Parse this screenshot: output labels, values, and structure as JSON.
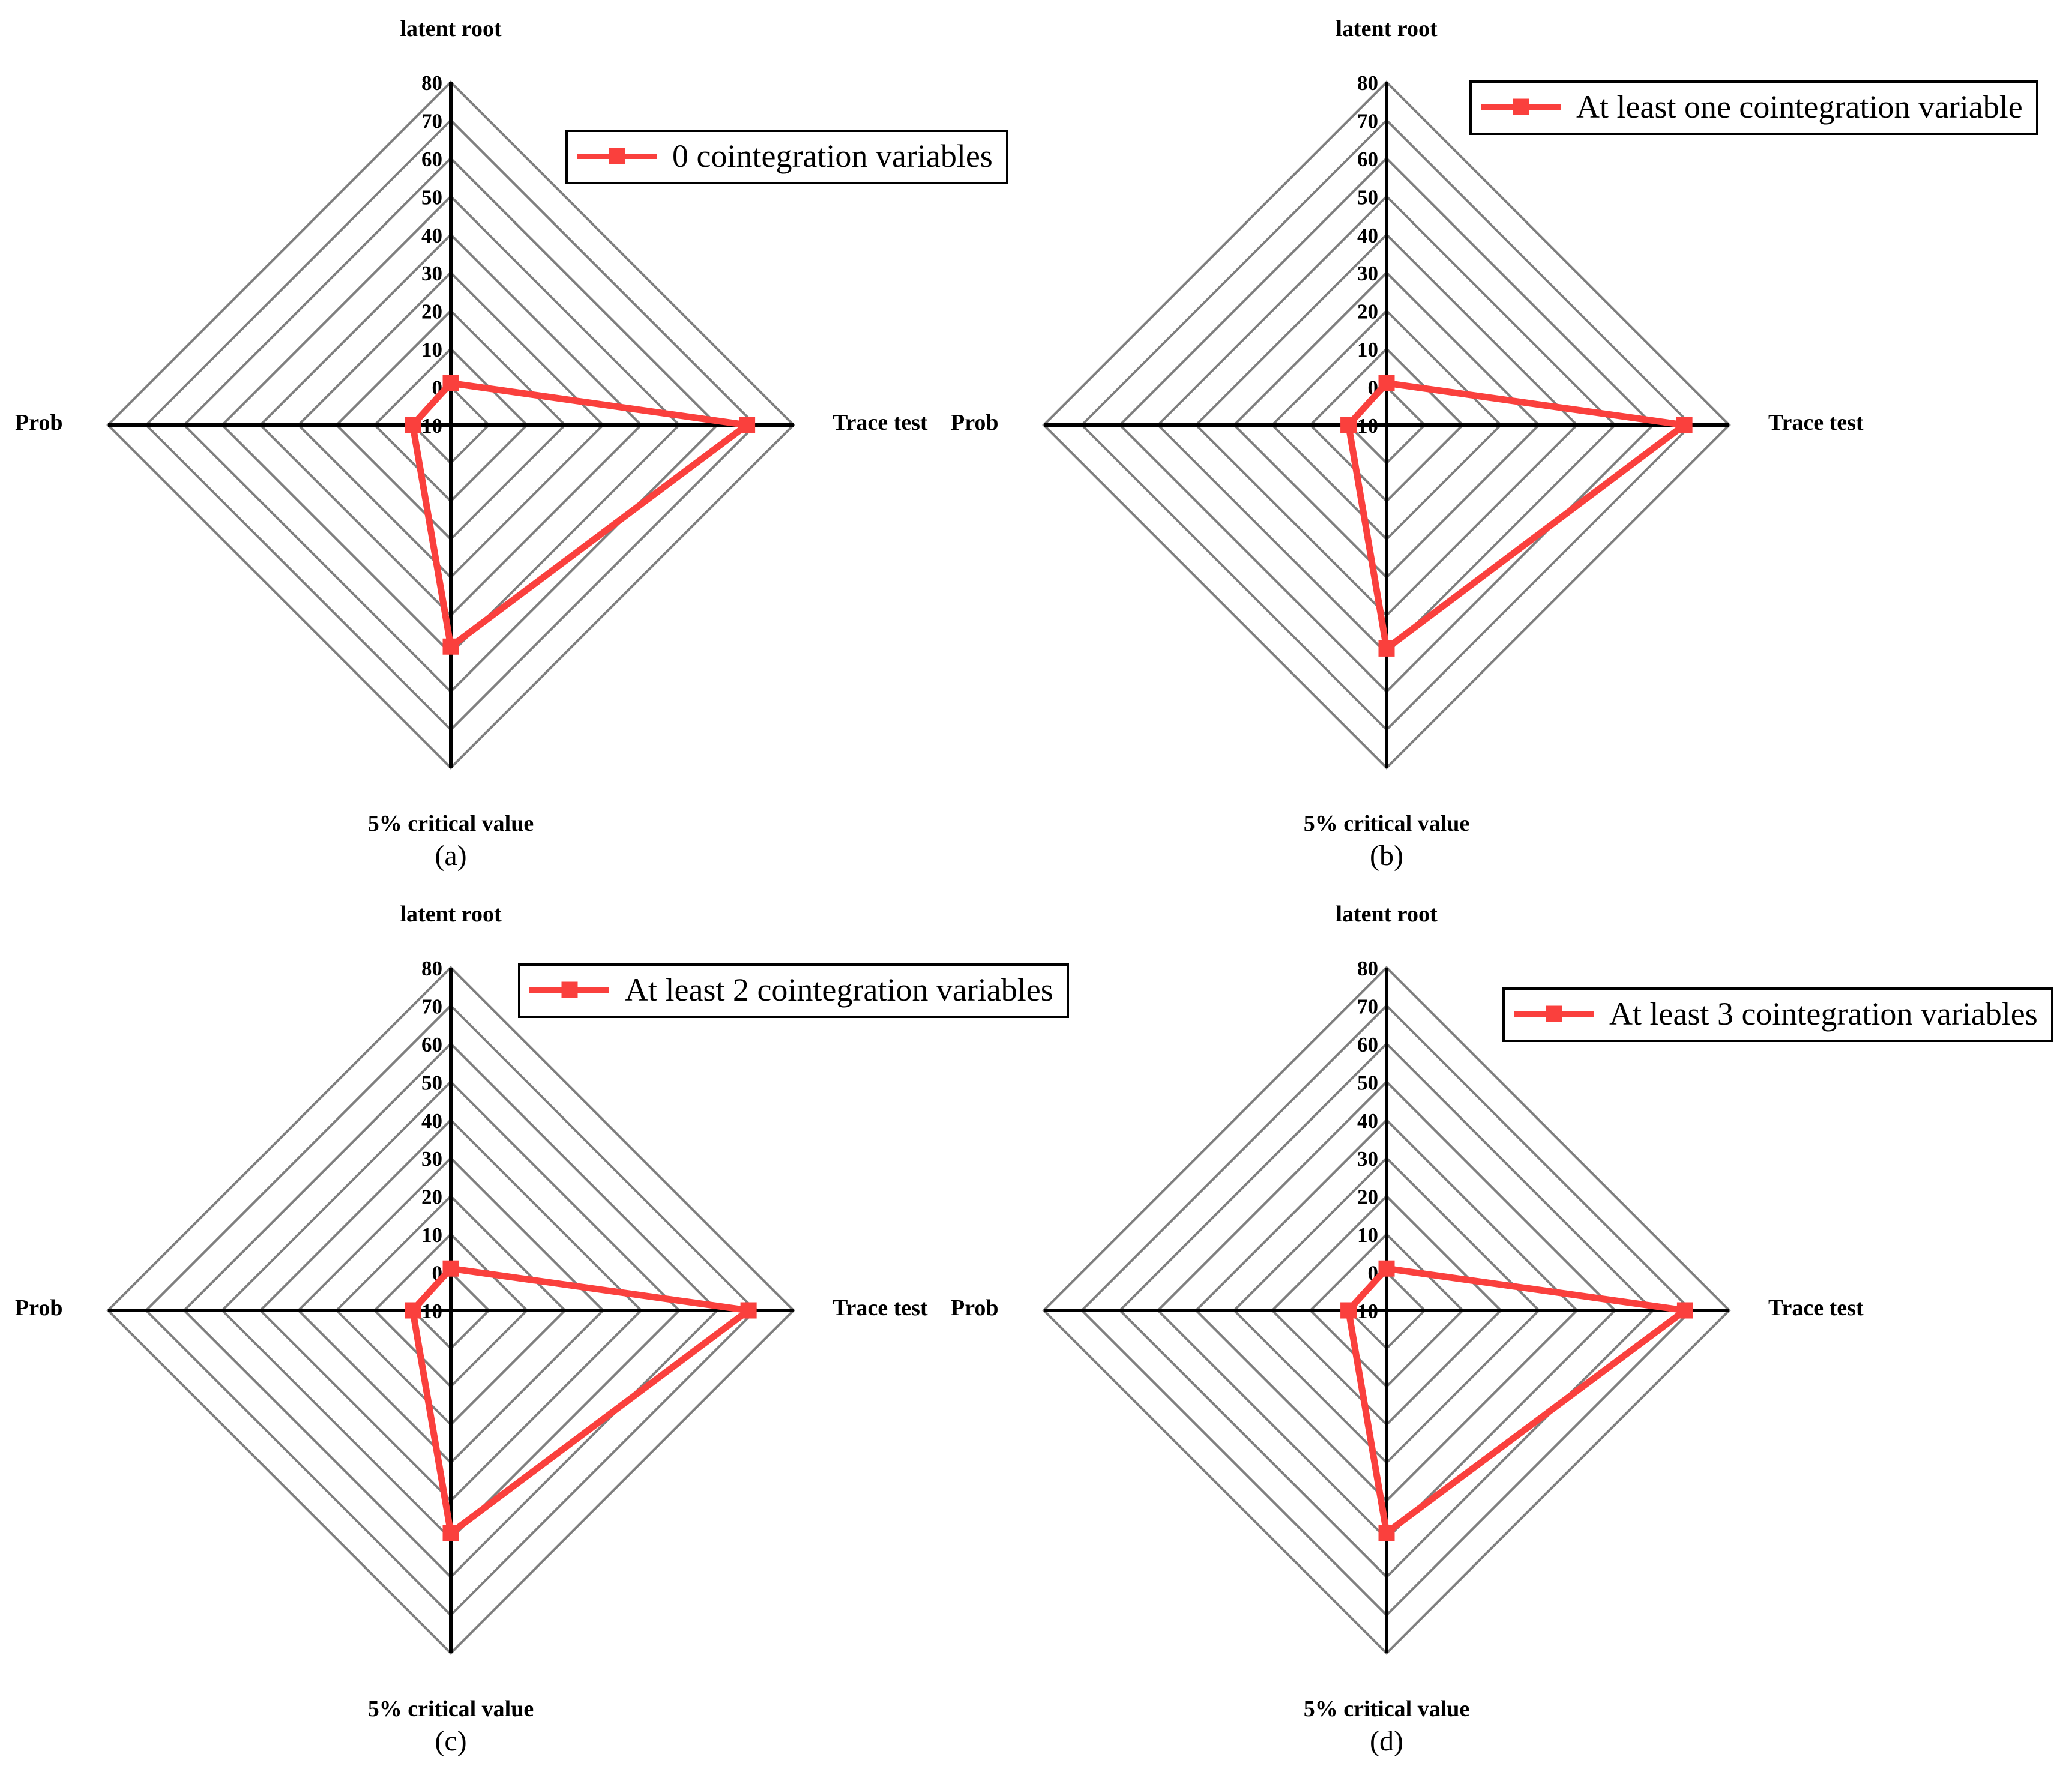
{
  "colors": {
    "series": "#fa403d",
    "grid": "#7f7f7f",
    "axis": "#000000",
    "legend_border": "#000000",
    "text": "#000000",
    "background": "#ffffff"
  },
  "axis_ticks": [
    "80",
    "70",
    "60",
    "50",
    "40",
    "30",
    "20",
    "10",
    "0",
    "-10"
  ],
  "panels": [
    {
      "id": "a",
      "axis_top": "latent root",
      "axis_right": "Trace test",
      "axis_left": "Prob",
      "axis_bottom": "5% critical value",
      "legend_label": "0 cointegration variables",
      "caption": "(a)"
    },
    {
      "id": "b",
      "axis_top": "latent root",
      "axis_right": "Trace test",
      "axis_left": "Prob",
      "axis_bottom": "5% critical value",
      "legend_label": "At least one cointegration variable",
      "caption": "(b)"
    },
    {
      "id": "c",
      "axis_top": "latent root",
      "axis_right": "Trace test",
      "axis_left": "Prob",
      "axis_bottom": "5% critical value",
      "legend_label": "At least 2 cointegration variables",
      "caption": "(c)"
    },
    {
      "id": "d",
      "axis_top": "latent root",
      "axis_right": "Trace test",
      "axis_left": "Prob",
      "axis_bottom": "5% critical value",
      "legend_label": "At least 3 cointegration variables",
      "caption": "(d)"
    }
  ],
  "chart_data": [
    {
      "type": "radar",
      "panel": "a",
      "title": "",
      "legend": "0 cointegration variables",
      "categories": [
        "latent root",
        "Trace test",
        "5% critical value",
        "Prob"
      ],
      "values": [
        1,
        67.8,
        48.2,
        0
      ],
      "scale": {
        "min": -10,
        "max": 80,
        "step": 10
      },
      "grid": "concentric diamonds, 9 rings",
      "legend_position": "top-right",
      "series_color": "#fa403d"
    },
    {
      "type": "radar",
      "panel": "b",
      "title": "",
      "legend": "At least one cointegration variable",
      "categories": [
        "latent root",
        "Trace test",
        "5% critical value",
        "Prob"
      ],
      "values": [
        1,
        68.2,
        48.7,
        0
      ],
      "scale": {
        "min": -10,
        "max": 80,
        "step": 10
      },
      "grid": "concentric diamonds, 9 rings",
      "legend_position": "top-right",
      "series_color": "#fa403d"
    },
    {
      "type": "radar",
      "panel": "c",
      "title": "",
      "legend": "At least 2 cointegration variables",
      "categories": [
        "latent root",
        "Trace test",
        "5% critical value",
        "Prob"
      ],
      "values": [
        1,
        68.2,
        48.5,
        0
      ],
      "scale": {
        "min": -10,
        "max": 80,
        "step": 10
      },
      "grid": "concentric diamonds, 9 rings",
      "legend_position": "top-right",
      "series_color": "#fa403d"
    },
    {
      "type": "radar",
      "panel": "d",
      "title": "",
      "legend": "At least 3 cointegration variables",
      "categories": [
        "latent root",
        "Trace test",
        "5% critical value",
        "Prob"
      ],
      "values": [
        1,
        68.4,
        48.4,
        0
      ],
      "scale": {
        "min": -10,
        "max": 80,
        "step": 10
      },
      "grid": "concentric diamonds, 9 rings",
      "legend_position": "top-right",
      "series_color": "#fa403d"
    }
  ]
}
